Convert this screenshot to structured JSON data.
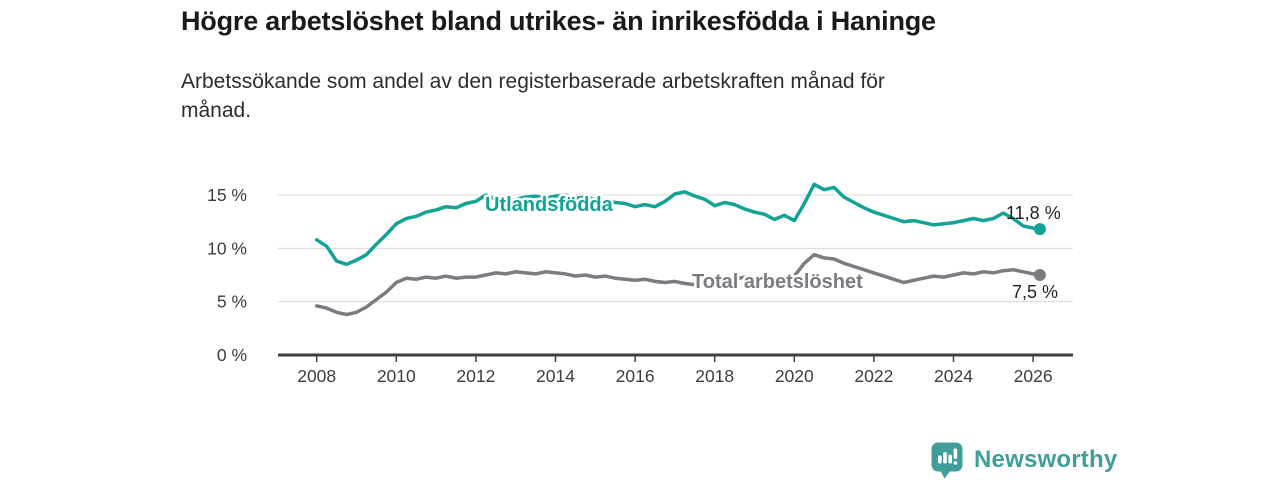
{
  "header": {
    "title": "Högre arbetslöshet bland utrikes- än inrikesfödda i Haninge",
    "subtitle_line1": "Arbetssökande som andel av den registerbaserade arbetskraften månad för",
    "subtitle_line2": "månad."
  },
  "footer": {
    "brand": "Newsworthy",
    "logo_icon": "bar-chart-speech-bubble-icon",
    "brand_color": "#3f9d9a"
  },
  "colors": {
    "utlandsfodda_line": "#13a296",
    "total_line": "#7b7b81",
    "axis": "#3f3f3f",
    "gridline": "#d9d9d9",
    "tick_label": "#3d3d3d",
    "title_text": "#191919"
  },
  "chart_data": {
    "type": "line",
    "title": "Högre arbetslöshet bland utrikes- än inrikesfödda i Haninge",
    "subtitle": "Arbetssökande som andel av den registerbaserade arbetskraften månad för månad.",
    "xlabel": "",
    "ylabel": "",
    "y_unit": "%",
    "ylim": [
      0,
      16.5
    ],
    "xlim": [
      2007.05,
      2027.05
    ],
    "grid": "horizontal-only",
    "legend_position": "inline-labels-on-lines",
    "y_ticks": [
      {
        "value": 0,
        "label": "0 %"
      },
      {
        "value": 5,
        "label": "5 %"
      },
      {
        "value": 10,
        "label": "10 %"
      },
      {
        "value": 15,
        "label": "15 %"
      }
    ],
    "x_ticks": [
      {
        "value": 2008,
        "label": "2008"
      },
      {
        "value": 2010,
        "label": "2010"
      },
      {
        "value": 2012,
        "label": "2012"
      },
      {
        "value": 2014,
        "label": "2014"
      },
      {
        "value": 2016,
        "label": "2016"
      },
      {
        "value": 2018,
        "label": "2018"
      },
      {
        "value": 2020,
        "label": "2020"
      },
      {
        "value": 2022,
        "label": "2022"
      },
      {
        "value": 2024,
        "label": "2024"
      },
      {
        "value": 2026,
        "label": "2026"
      }
    ],
    "x": [
      2008,
      2008.25,
      2008.5,
      2008.75,
      2009,
      2009.25,
      2009.5,
      2009.75,
      2010,
      2010.25,
      2010.5,
      2010.75,
      2011,
      2011.25,
      2011.5,
      2011.75,
      2012,
      2012.25,
      2012.5,
      2012.75,
      2013,
      2013.25,
      2013.5,
      2013.75,
      2014,
      2014.25,
      2014.5,
      2014.75,
      2015,
      2015.25,
      2015.5,
      2015.75,
      2016,
      2016.25,
      2016.5,
      2016.75,
      2017,
      2017.25,
      2017.5,
      2017.75,
      2018,
      2018.25,
      2018.5,
      2018.75,
      2019,
      2019.25,
      2019.5,
      2019.75,
      2020,
      2020.25,
      2020.5,
      2020.75,
      2021,
      2021.25,
      2021.5,
      2021.75,
      2022,
      2022.25,
      2022.5,
      2022.75,
      2023,
      2023.25,
      2023.5,
      2023.75,
      2024,
      2024.25,
      2024.5,
      2024.75,
      2025,
      2025.25,
      2025.5,
      2025.75,
      2026,
      2026.17
    ],
    "series": [
      {
        "name": "Utlandsfödda",
        "color": "#13a296",
        "end_label": "11,8 %",
        "end_value": 11.8,
        "values": [
          10.8,
          10.2,
          8.8,
          8.5,
          8.9,
          9.4,
          10.4,
          11.3,
          12.3,
          12.8,
          13.0,
          13.4,
          13.6,
          13.9,
          13.8,
          14.2,
          14.4,
          15.0,
          14.6,
          14.3,
          14.6,
          14.8,
          14.9,
          14.7,
          14.9,
          15.0,
          14.7,
          14.8,
          14.6,
          14.5,
          14.3,
          14.2,
          13.9,
          14.1,
          13.9,
          14.4,
          15.1,
          15.3,
          14.9,
          14.6,
          14.0,
          14.3,
          14.1,
          13.7,
          13.4,
          13.2,
          12.7,
          13.1,
          12.6,
          14.2,
          16.0,
          15.5,
          15.7,
          14.8,
          14.3,
          13.8,
          13.4,
          13.1,
          12.8,
          12.5,
          12.6,
          12.4,
          12.2,
          12.3,
          12.4,
          12.6,
          12.8,
          12.6,
          12.8,
          13.3,
          12.8,
          12.1,
          11.9,
          11.8
        ]
      },
      {
        "name": "Total arbetslöshet",
        "color": "#7b7b81",
        "end_label": "7,5 %",
        "end_value": 7.5,
        "values": [
          4.6,
          4.4,
          4.0,
          3.8,
          4.0,
          4.5,
          5.2,
          5.9,
          6.8,
          7.2,
          7.1,
          7.3,
          7.2,
          7.4,
          7.2,
          7.3,
          7.3,
          7.5,
          7.7,
          7.6,
          7.8,
          7.7,
          7.6,
          7.8,
          7.7,
          7.6,
          7.4,
          7.5,
          7.3,
          7.4,
          7.2,
          7.1,
          7.0,
          7.1,
          6.9,
          6.8,
          6.9,
          6.7,
          6.6,
          6.8,
          7.1,
          7.2,
          7.1,
          7.3,
          7.2,
          7.3,
          7.2,
          7.3,
          7.4,
          8.6,
          9.4,
          9.1,
          9.0,
          8.6,
          8.3,
          8.0,
          7.7,
          7.4,
          7.1,
          6.8,
          7.0,
          7.2,
          7.4,
          7.3,
          7.5,
          7.7,
          7.6,
          7.8,
          7.7,
          7.9,
          8.0,
          7.8,
          7.6,
          7.5
        ]
      }
    ]
  }
}
